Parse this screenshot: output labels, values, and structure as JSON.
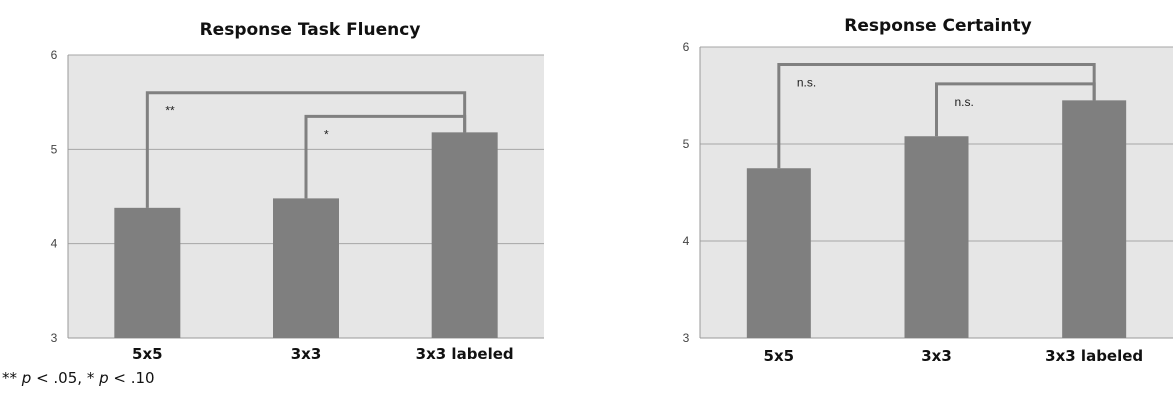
{
  "chart_data": [
    {
      "type": "bar",
      "title": "Response Task Fluency",
      "categories": [
        "5x5",
        "3x3",
        "3x3 labeled"
      ],
      "values": [
        4.38,
        4.48,
        5.18
      ],
      "ylim": [
        3,
        6
      ],
      "yticks": [
        "3",
        "4",
        "5",
        "6"
      ],
      "grid": true,
      "legend": "none",
      "bar_color": "#7f7f7f",
      "plot_background": "#e6e6e6",
      "bracket_color": "#808080",
      "brackets": [
        {
          "from": "5x5",
          "to": "3x3 labeled",
          "label": "**",
          "top": 5.6
        },
        {
          "from": "3x3",
          "to": "3x3 labeled",
          "label": "*",
          "top": 5.35
        }
      ]
    },
    {
      "type": "bar",
      "title": "Response Certainty",
      "categories": [
        "5x5",
        "3x3",
        "3x3 labeled"
      ],
      "values": [
        4.75,
        5.08,
        5.45
      ],
      "ylim": [
        3,
        6
      ],
      "yticks": [
        "3",
        "4",
        "5",
        "6"
      ],
      "grid": true,
      "legend": "none",
      "bar_color": "#7f7f7f",
      "plot_background": "#e6e6e6",
      "bracket_color": "#808080",
      "brackets": [
        {
          "from": "5x5",
          "to": "3x3 labeled",
          "label": "n.s.",
          "top": 5.82
        },
        {
          "from": "3x3",
          "to": "3x3 labeled",
          "label": "n.s.",
          "top": 5.62
        }
      ]
    }
  ],
  "footnote": {
    "sig2_marker": "** ",
    "sig2_symbol": "p",
    "sig2_rest": " < .05, ",
    "sig1_marker": "* ",
    "sig1_symbol": "p",
    "sig1_rest": " < .10"
  }
}
